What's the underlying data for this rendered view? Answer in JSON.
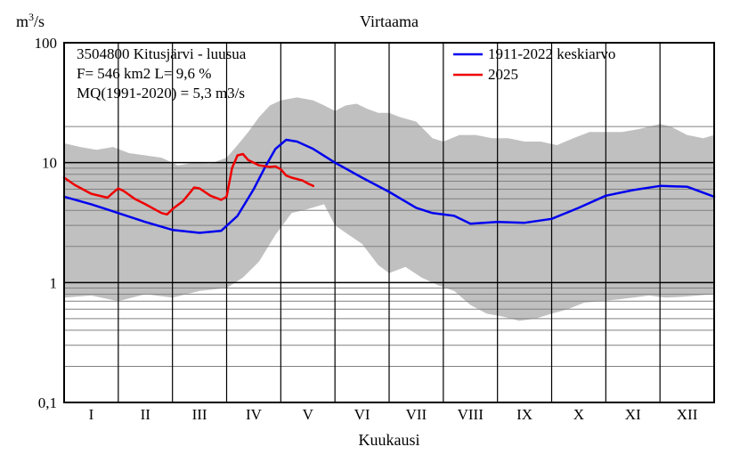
{
  "chart_data": {
    "type": "line",
    "title": "Virtaama",
    "ylabel_base": "m",
    "ylabel_sup": "3",
    "ylabel_tail": "/s",
    "xlabel": "Kuukausi",
    "yscale": "log",
    "ylim": [
      0.1,
      100
    ],
    "xlim": [
      0,
      12
    ],
    "y_tick_labels": [
      {
        "value": 0.1,
        "label": "0,1"
      },
      {
        "value": 1,
        "label": "1"
      },
      {
        "value": 10,
        "label": "10"
      },
      {
        "value": 100,
        "label": "100"
      }
    ],
    "y_minor_gridlines": [
      0.2,
      0.3,
      0.4,
      0.5,
      0.6,
      0.7,
      0.8,
      0.9,
      2,
      3,
      4,
      5,
      6,
      7,
      8,
      9,
      20
    ],
    "months": [
      "I",
      "II",
      "III",
      "IV",
      "V",
      "VI",
      "VII",
      "VIII",
      "IX",
      "X",
      "XI",
      "XII"
    ],
    "info_lines": [
      "3504800 Kitusjärvi - luusua",
      "F=    546 km2 L=  9,6 %",
      "MQ(1991-2020) = 5,3 m3/s"
    ],
    "legend": [
      {
        "label": "1911-2022 keskiarvo",
        "color": "#0000ee"
      },
      {
        "label": "2025",
        "color": "#ee0000"
      }
    ],
    "band_color": "#c0c0c0",
    "band_upper": [
      [
        0,
        14.5
      ],
      [
        0.3,
        13.5
      ],
      [
        0.6,
        12.8
      ],
      [
        0.9,
        13.5
      ],
      [
        1.2,
        12
      ],
      [
        1.5,
        11.5
      ],
      [
        1.8,
        11
      ],
      [
        2.1,
        9.5
      ],
      [
        2.4,
        10
      ],
      [
        2.7,
        9.8
      ],
      [
        3.0,
        11
      ],
      [
        3.2,
        14
      ],
      [
        3.4,
        18
      ],
      [
        3.6,
        24
      ],
      [
        3.8,
        30
      ],
      [
        4.0,
        33
      ],
      [
        4.3,
        35
      ],
      [
        4.6,
        33
      ],
      [
        4.8,
        30
      ],
      [
        5.0,
        27
      ],
      [
        5.2,
        30
      ],
      [
        5.4,
        31
      ],
      [
        5.6,
        28
      ],
      [
        5.8,
        26
      ],
      [
        6.0,
        26
      ],
      [
        6.2,
        24
      ],
      [
        6.5,
        22
      ],
      [
        6.8,
        16
      ],
      [
        7.0,
        15
      ],
      [
        7.3,
        17
      ],
      [
        7.6,
        17
      ],
      [
        7.9,
        16
      ],
      [
        8.2,
        16
      ],
      [
        8.5,
        15
      ],
      [
        8.8,
        15
      ],
      [
        9.1,
        14
      ],
      [
        9.4,
        16
      ],
      [
        9.7,
        18
      ],
      [
        10.0,
        18
      ],
      [
        10.3,
        18
      ],
      [
        10.6,
        19
      ],
      [
        11.0,
        21
      ],
      [
        11.2,
        20
      ],
      [
        11.5,
        17
      ],
      [
        11.8,
        16
      ],
      [
        12.0,
        17
      ]
    ],
    "band_lower": [
      [
        0,
        0.75
      ],
      [
        0.5,
        0.78
      ],
      [
        1.0,
        0.7
      ],
      [
        1.5,
        0.8
      ],
      [
        2.0,
        0.75
      ],
      [
        2.5,
        0.85
      ],
      [
        3.0,
        0.9
      ],
      [
        3.3,
        1.1
      ],
      [
        3.6,
        1.5
      ],
      [
        3.9,
        2.5
      ],
      [
        4.2,
        3.8
      ],
      [
        4.5,
        4.1
      ],
      [
        4.8,
        4.5
      ],
      [
        5.0,
        3.0
      ],
      [
        5.2,
        2.6
      ],
      [
        5.5,
        2.1
      ],
      [
        5.8,
        1.4
      ],
      [
        6.0,
        1.2
      ],
      [
        6.3,
        1.35
      ],
      [
        6.6,
        1.1
      ],
      [
        6.9,
        0.95
      ],
      [
        7.2,
        0.85
      ],
      [
        7.5,
        0.65
      ],
      [
        7.8,
        0.55
      ],
      [
        8.1,
        0.52
      ],
      [
        8.4,
        0.48
      ],
      [
        8.7,
        0.5
      ],
      [
        9.0,
        0.55
      ],
      [
        9.3,
        0.6
      ],
      [
        9.6,
        0.68
      ],
      [
        9.9,
        0.7
      ],
      [
        10.2,
        0.72
      ],
      [
        10.5,
        0.75
      ],
      [
        10.8,
        0.78
      ],
      [
        11.1,
        0.75
      ],
      [
        11.4,
        0.76
      ],
      [
        11.7,
        0.78
      ],
      [
        12.0,
        0.8
      ]
    ],
    "series": [
      {
        "name": "1911-2022 keskiarvo",
        "color": "#0000ee",
        "points": [
          [
            0,
            5.2
          ],
          [
            0.5,
            4.5
          ],
          [
            1.0,
            3.8
          ],
          [
            1.5,
            3.2
          ],
          [
            2.0,
            2.75
          ],
          [
            2.5,
            2.6
          ],
          [
            2.9,
            2.7
          ],
          [
            3.2,
            3.6
          ],
          [
            3.5,
            6
          ],
          [
            3.7,
            9
          ],
          [
            3.9,
            13
          ],
          [
            4.1,
            15.5
          ],
          [
            4.3,
            15
          ],
          [
            4.6,
            13
          ],
          [
            5.0,
            10
          ],
          [
            5.5,
            7.5
          ],
          [
            6.0,
            5.7
          ],
          [
            6.5,
            4.2
          ],
          [
            6.8,
            3.8
          ],
          [
            7.2,
            3.6
          ],
          [
            7.5,
            3.1
          ],
          [
            8.0,
            3.2
          ],
          [
            8.5,
            3.15
          ],
          [
            9.0,
            3.4
          ],
          [
            9.5,
            4.2
          ],
          [
            10.0,
            5.3
          ],
          [
            10.5,
            5.9
          ],
          [
            11.0,
            6.4
          ],
          [
            11.5,
            6.3
          ],
          [
            12.0,
            5.2
          ]
        ]
      },
      {
        "name": "2025",
        "color": "#ee0000",
        "points": [
          [
            0,
            7.5
          ],
          [
            0.2,
            6.5
          ],
          [
            0.5,
            5.5
          ],
          [
            0.8,
            5.1
          ],
          [
            0.9,
            5.6
          ],
          [
            1.0,
            6.1
          ],
          [
            1.1,
            5.8
          ],
          [
            1.3,
            5.0
          ],
          [
            1.5,
            4.5
          ],
          [
            1.8,
            3.8
          ],
          [
            1.9,
            3.7
          ],
          [
            2.0,
            4.1
          ],
          [
            2.2,
            4.8
          ],
          [
            2.4,
            6.2
          ],
          [
            2.5,
            6.1
          ],
          [
            2.7,
            5.3
          ],
          [
            2.9,
            4.9
          ],
          [
            3.0,
            5.2
          ],
          [
            3.1,
            9
          ],
          [
            3.2,
            11.5
          ],
          [
            3.3,
            11.8
          ],
          [
            3.4,
            10.5
          ],
          [
            3.6,
            9.5
          ],
          [
            3.8,
            9.2
          ],
          [
            3.9,
            9.3
          ],
          [
            4.0,
            8.8
          ],
          [
            4.1,
            7.8
          ],
          [
            4.2,
            7.5
          ],
          [
            4.4,
            7.1
          ],
          [
            4.5,
            6.7
          ],
          [
            4.6,
            6.4
          ]
        ]
      }
    ]
  }
}
